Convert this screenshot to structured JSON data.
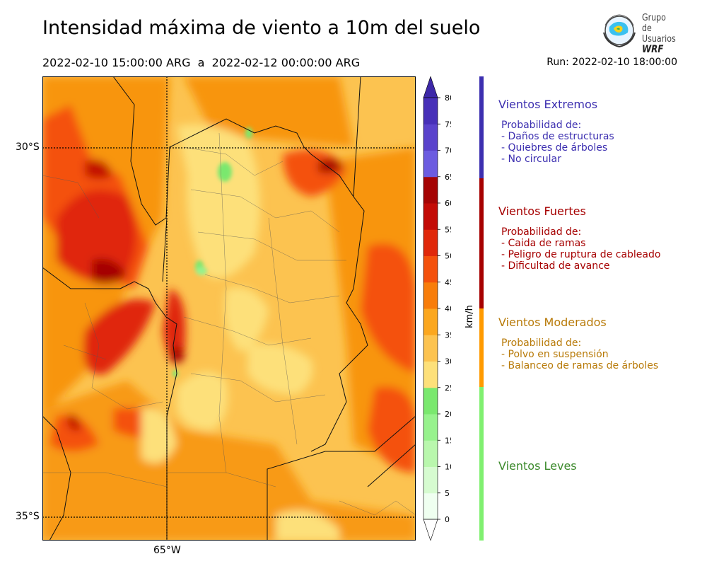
{
  "header": {
    "title": "Intensidad máxima de viento a 10m del suelo",
    "period": "2022-02-10 15:00:00 ARG  a  2022-02-12 00:00:00 ARG",
    "run": "Run: 2022-02-10 18:00:00"
  },
  "logo": {
    "line1": "Grupo de",
    "line2": "Usuarios",
    "line3": "WRF"
  },
  "axes": {
    "lat_labels": [
      "30°S",
      "35°S"
    ],
    "lon_labels": [
      "65°W"
    ]
  },
  "colorbar": {
    "unit_label": "km/h",
    "ticks": [
      "0",
      "5",
      "10",
      "15",
      "20",
      "25",
      "30",
      "35",
      "40",
      "45",
      "50",
      "55",
      "60",
      "65",
      "70",
      "75",
      "80"
    ],
    "colors": [
      "#effff0",
      "#d6fbd0",
      "#b9f7ad",
      "#97f28d",
      "#7ae86e",
      "#fde07a",
      "#fcc350",
      "#fba71f",
      "#f87d0a",
      "#f4510c",
      "#e0280a",
      "#c30b06",
      "#a50404",
      "#6c5ce0",
      "#5a43cc",
      "#4730b8"
    ],
    "extend_low": "#ffffff",
    "extend_high": "#3d28a8"
  },
  "legend": [
    {
      "name": "Vientos Extremos",
      "color": "#3c2fb0",
      "lines": "Probabilidad de:\n- Daños de estructuras\n- Quiebres de árboles\n- No circular"
    },
    {
      "name": "Vientos Fuertes",
      "color": "#a60000",
      "lines": "Probabilidad de:\n- Caida de ramas\n- Peligro de ruptura de cableado\n- Dificultad de avance"
    },
    {
      "name": "Vientos Moderados",
      "color": "#b87a08",
      "lines": "Probabilidad de:\n- Polvo en suspensión\n- Balanceo de ramas de árboles"
    },
    {
      "name": "Vientos Leves",
      "color": "#3c8a2c",
      "lines": ""
    }
  ],
  "legend_bar_colors": [
    "#3c2fb0",
    "#a60000",
    "#ff9a00",
    "#80f070"
  ]
}
